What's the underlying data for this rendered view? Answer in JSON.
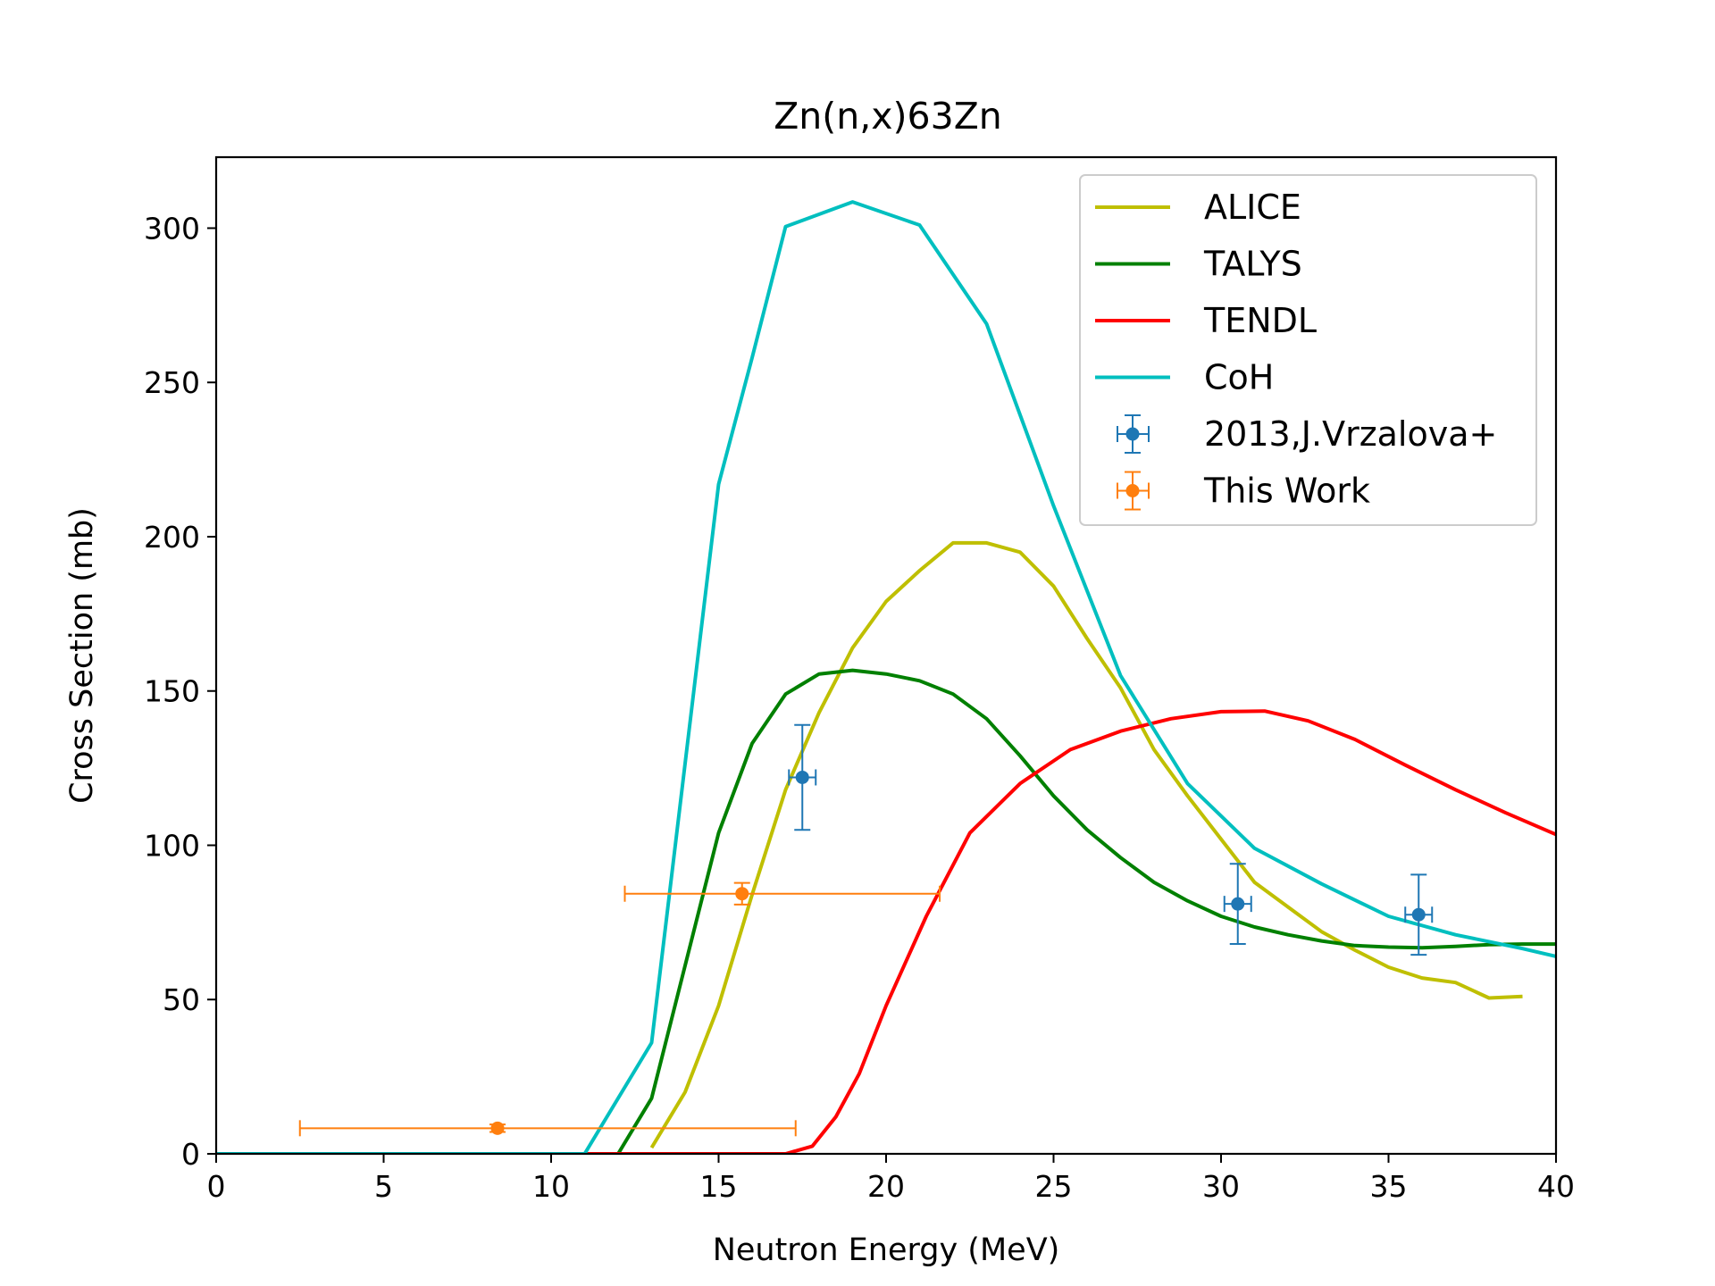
{
  "chart_data": {
    "type": "line",
    "title": "Zn(n,x)63Zn",
    "xlabel": "Neutron Energy (MeV)",
    "ylabel": "Cross Section (mb)",
    "xlim": [
      0,
      40
    ],
    "ylim": [
      0,
      323
    ],
    "xticks": [
      0,
      5,
      10,
      15,
      20,
      25,
      30,
      35,
      40
    ],
    "yticks": [
      0,
      50,
      100,
      150,
      200,
      250,
      300
    ],
    "grid": false,
    "legend_position": "upper right",
    "series": [
      {
        "name": "ALICE",
        "kind": "line",
        "color": "#bfbf00",
        "x": [
          13,
          14,
          15,
          16,
          17,
          18,
          19,
          20,
          21,
          22,
          23,
          24,
          25,
          26,
          27,
          28,
          29,
          30,
          31,
          32,
          33,
          34,
          35,
          36,
          37,
          38,
          39
        ],
        "y": [
          2,
          20,
          48,
          84,
          118,
          143,
          164,
          179,
          189,
          198,
          198,
          195,
          184,
          167,
          151,
          131,
          116,
          102,
          88,
          80,
          72,
          66,
          60.5,
          57,
          55.5,
          50.5,
          51
        ]
      },
      {
        "name": "TALYS",
        "kind": "line",
        "color": "#008000",
        "x": [
          12,
          13,
          14,
          15,
          16,
          17,
          18,
          19,
          20,
          21,
          22,
          23,
          24,
          25,
          26,
          27,
          28,
          29,
          30,
          31,
          32,
          33,
          34,
          35,
          36,
          37,
          38,
          39,
          40
        ],
        "y": [
          0,
          18,
          61,
          104,
          133,
          149,
          155.5,
          156.7,
          155.5,
          153.3,
          149,
          141,
          129,
          116,
          105,
          96,
          88,
          82,
          77,
          73.5,
          71,
          69,
          67.5,
          67,
          66.8,
          67.2,
          67.8,
          68,
          68
        ]
      },
      {
        "name": "TENDL",
        "kind": "line",
        "color": "#ff0000",
        "x": [
          0,
          17,
          17.8,
          18.5,
          19.2,
          20,
          21.2,
          22.5,
          24,
          25.5,
          27,
          28.5,
          30,
          31.3,
          32.6,
          34,
          35.5,
          37,
          38.5,
          40
        ],
        "y": [
          0,
          0,
          2.5,
          12,
          26,
          48,
          77,
          104,
          120,
          131,
          137,
          141,
          143.3,
          143.5,
          140.3,
          134.3,
          126,
          118,
          110.5,
          103.5
        ]
      },
      {
        "name": "CoH",
        "kind": "line",
        "color": "#00bfbf",
        "x": [
          0,
          1,
          11,
          13,
          15,
          16,
          17,
          19,
          21,
          23,
          25,
          27,
          29,
          31,
          33,
          35,
          37,
          39,
          40
        ],
        "y": [
          0,
          0,
          0,
          36,
          217,
          258,
          300.5,
          308.5,
          301,
          269,
          210,
          155,
          120,
          99,
          87.5,
          77,
          71,
          66.5,
          64
        ]
      },
      {
        "name": "2013,J.Vrzalova+",
        "kind": "errorbar",
        "color": "#1f77b4",
        "points": [
          {
            "x": 17.5,
            "y": 122,
            "xerr": 0.4,
            "yerr": 17
          },
          {
            "x": 30.5,
            "y": 81,
            "xerr": 0.4,
            "yerr": 13
          },
          {
            "x": 35.9,
            "y": 77.5,
            "xerr": 0.4,
            "yerr": 13
          }
        ]
      },
      {
        "name": "This Work",
        "kind": "errorbar",
        "color": "#ff7f0e",
        "points": [
          {
            "x": 8.4,
            "y": 8.3,
            "xerr_low": 5.9,
            "xerr_high": 8.9,
            "yerr": 1.2
          },
          {
            "x": 15.7,
            "y": 84.3,
            "xerr_low": 3.5,
            "xerr_high": 5.9,
            "yerr": 3.5
          }
        ]
      }
    ]
  }
}
